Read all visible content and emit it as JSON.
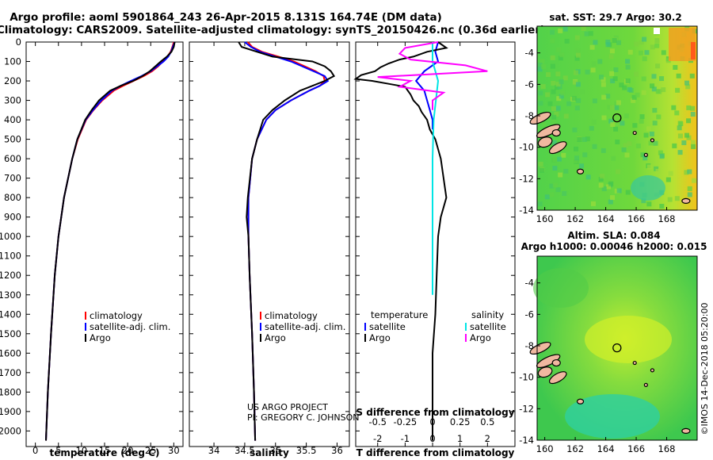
{
  "header": {
    "title_line1": "Argo profile: aoml 5901864_243 26-Apr-2015 8.131S 164.74E (DM data)",
    "title_line2": "Climatology: CARS2009. Satellite-adjusted climatology: synTS_20150426.nc (0.36d earlier)"
  },
  "colors": {
    "climatology": "#ff0000",
    "satellite": "#0000ff",
    "argo": "#000000",
    "sat_salinity": "#00e5e5",
    "argo_salinity": "#ff00ff"
  },
  "chart_data": [
    {
      "type": "line",
      "title": "",
      "xlabel": "temperature (deg C)",
      "ylabel": "",
      "xlim": [
        -2,
        32
      ],
      "ylim": [
        2080,
        0
      ],
      "xticks": [
        0,
        5,
        10,
        15,
        20,
        25,
        30
      ],
      "yticks": [
        0,
        100,
        200,
        300,
        400,
        500,
        600,
        700,
        800,
        900,
        1000,
        1100,
        1200,
        1300,
        1400,
        1500,
        1600,
        1700,
        1800,
        1900,
        2000
      ],
      "legend": [
        "climatology",
        "satellite-adj. clim.",
        "Argo"
      ],
      "legend_position": "lower-right",
      "series": [
        {
          "name": "climatology",
          "depth": [
            0,
            25,
            50,
            75,
            100,
            125,
            150,
            175,
            200,
            225,
            250,
            300,
            350,
            400,
            500,
            600,
            800,
            1000,
            1200,
            1500,
            1800,
            2050
          ],
          "values": [
            30.0,
            29.7,
            29.3,
            28.6,
            27.6,
            26.6,
            25.3,
            23.5,
            21.3,
            19.0,
            17.0,
            14.5,
            12.6,
            11.0,
            9.2,
            8.0,
            6.2,
            5.0,
            4.2,
            3.4,
            2.7,
            2.3
          ]
        },
        {
          "name": "satellite-adj. clim.",
          "depth": [
            0,
            25,
            50,
            75,
            100,
            125,
            150,
            175,
            200,
            225,
            250,
            300,
            350,
            400,
            500,
            600,
            800,
            1000,
            1200,
            1500,
            1800,
            2050
          ],
          "values": [
            30.2,
            29.8,
            29.4,
            28.8,
            27.8,
            26.4,
            25.0,
            23.0,
            20.7,
            18.5,
            16.6,
            14.3,
            12.5,
            10.9,
            9.1,
            8.0,
            6.2,
            5.0,
            4.2,
            3.4,
            2.7,
            2.3
          ]
        },
        {
          "name": "Argo",
          "depth": [
            0,
            25,
            50,
            75,
            100,
            125,
            150,
            175,
            200,
            225,
            250,
            300,
            350,
            400,
            500,
            600,
            800,
            1000,
            1200,
            1500,
            1800,
            2050
          ],
          "values": [
            30.2,
            30.0,
            29.5,
            28.5,
            27.2,
            26.0,
            24.8,
            23.2,
            21.2,
            18.5,
            16.2,
            13.8,
            12.2,
            10.8,
            9.1,
            8.0,
            6.2,
            5.0,
            4.2,
            3.4,
            2.7,
            2.3
          ]
        }
      ]
    },
    {
      "type": "line",
      "title": "",
      "xlabel": "salinity",
      "ylabel": "",
      "xlim": [
        33.6,
        36.2
      ],
      "ylim": [
        2080,
        0
      ],
      "xticks": [
        34,
        34.5,
        35,
        35.5,
        36
      ],
      "legend": [
        "climatology",
        "satellite-adj. clim.",
        "Argo"
      ],
      "legend_position": "lower-right",
      "credits": [
        "US ARGO PROJECT",
        "PI: GREGORY C. JOHNSON"
      ],
      "series": [
        {
          "name": "climatology",
          "depth": [
            0,
            25,
            50,
            75,
            100,
            150,
            175,
            200,
            225,
            250,
            300,
            350,
            400,
            500,
            600,
            800,
            1000,
            1200,
            1500,
            1800,
            2050
          ],
          "values": [
            34.55,
            34.62,
            34.78,
            35.05,
            35.3,
            35.65,
            35.78,
            35.8,
            35.72,
            35.55,
            35.25,
            35.0,
            34.85,
            34.7,
            34.62,
            34.56,
            34.56,
            34.58,
            34.62,
            34.65,
            34.67
          ]
        },
        {
          "name": "satellite-adj. clim.",
          "depth": [
            0,
            25,
            50,
            75,
            100,
            150,
            175,
            200,
            225,
            250,
            300,
            350,
            400,
            500,
            600,
            800,
            1000,
            1200,
            1500,
            1800,
            2050
          ],
          "values": [
            34.5,
            34.6,
            34.75,
            35.0,
            35.25,
            35.62,
            35.8,
            35.85,
            35.72,
            35.55,
            35.25,
            35.0,
            34.85,
            34.7,
            34.62,
            34.56,
            34.56,
            34.58,
            34.62,
            34.65,
            34.67
          ]
        },
        {
          "name": "Argo",
          "depth": [
            0,
            25,
            50,
            75,
            100,
            125,
            150,
            175,
            200,
            225,
            250,
            300,
            350,
            400,
            500,
            600,
            800,
            900,
            1000,
            1200,
            1500,
            1800,
            2050
          ],
          "values": [
            34.4,
            34.45,
            34.7,
            34.95,
            35.6,
            35.8,
            35.9,
            35.95,
            35.8,
            35.6,
            35.4,
            35.15,
            34.95,
            34.8,
            34.7,
            34.62,
            34.55,
            34.53,
            34.56,
            34.58,
            34.62,
            34.65,
            34.67
          ]
        }
      ]
    },
    {
      "type": "line",
      "title": "",
      "xlabel": "T difference from climatology",
      "xlabel_top": "S difference from climatology",
      "xlim": [
        -2.8,
        3.0
      ],
      "xticks": [
        -2,
        -1,
        0,
        1,
        2
      ],
      "xticks_s": [
        -0.5,
        -0.25,
        0,
        0.25,
        0.5
      ],
      "ylim": [
        2080,
        0
      ],
      "legend_left_title": "temperature",
      "legend_right_title": "salinity",
      "legend": [
        "satellite",
        "Argo",
        "satellite",
        "Argo"
      ],
      "series": [
        {
          "name": "T satellite",
          "depth": [
            0,
            50,
            100,
            150,
            200,
            250,
            300,
            350,
            400,
            450
          ],
          "values": [
            0.2,
            0.1,
            0.2,
            -0.3,
            -0.6,
            -0.3,
            -0.2,
            -0.1,
            0.0,
            0.0
          ]
        },
        {
          "name": "T Argo",
          "depth": [
            0,
            30,
            50,
            75,
            90,
            110,
            130,
            150,
            170,
            190,
            200,
            215,
            230,
            250,
            270,
            300,
            330,
            360,
            400,
            450,
            500,
            600,
            700,
            800,
            900,
            1000,
            1200,
            1400,
            1600,
            1800,
            2050
          ],
          "values": [
            0.2,
            0.5,
            -0.2,
            -0.7,
            -1.2,
            -1.6,
            -1.9,
            -2.1,
            -2.6,
            -2.8,
            -2.2,
            -1.6,
            -1.0,
            -0.9,
            -0.8,
            -0.7,
            -0.5,
            -0.4,
            -0.2,
            -0.1,
            0.1,
            0.3,
            0.4,
            0.5,
            0.3,
            0.2,
            0.15,
            0.1,
            0.0,
            0.0,
            0.0
          ]
        },
        {
          "name": "S satellite",
          "depth": [
            0,
            100,
            200,
            300,
            400,
            600,
            800,
            1000,
            1200,
            1300
          ],
          "values": [
            0.0,
            0.0,
            0.05,
            0.03,
            0.01,
            0.0,
            0.0,
            0.0,
            0.0,
            0.0
          ]
        },
        {
          "name": "S Argo",
          "depth": [
            0,
            30,
            60,
            90,
            120,
            150,
            180,
            200,
            230,
            260,
            300,
            350
          ],
          "values": [
            0.05,
            -0.25,
            -0.3,
            -0.2,
            0.3,
            0.5,
            -0.5,
            -0.2,
            -0.3,
            0.1,
            0.0,
            0.0
          ]
        }
      ]
    },
    {
      "type": "heatmap",
      "title": "sat. SST: 29.7 Argo: 30.2",
      "xlim": [
        159.5,
        170
      ],
      "ylim": [
        -14,
        -2.3
      ],
      "xticks": [
        160,
        162,
        164,
        166,
        168
      ],
      "yticks": [
        -4,
        -6,
        -8,
        -10,
        -12,
        -14
      ],
      "marker": {
        "lon": 164.74,
        "lat": -8.131
      }
    },
    {
      "type": "heatmap",
      "title": "Altim. SLA: 0.084",
      "subtitle": "Argo h1000: 0.00046 h2000: 0.015",
      "xlim": [
        159.5,
        170
      ],
      "ylim": [
        -14,
        -2.3
      ],
      "xticks": [
        160,
        162,
        164,
        166,
        168
      ],
      "yticks": [
        -4,
        -6,
        -8,
        -10,
        -12,
        -14
      ],
      "marker": {
        "lon": 164.74,
        "lat": -8.131
      }
    }
  ],
  "footer": {
    "imos_stamp": "©IMOS 14-Dec-2018 05:20:00"
  }
}
